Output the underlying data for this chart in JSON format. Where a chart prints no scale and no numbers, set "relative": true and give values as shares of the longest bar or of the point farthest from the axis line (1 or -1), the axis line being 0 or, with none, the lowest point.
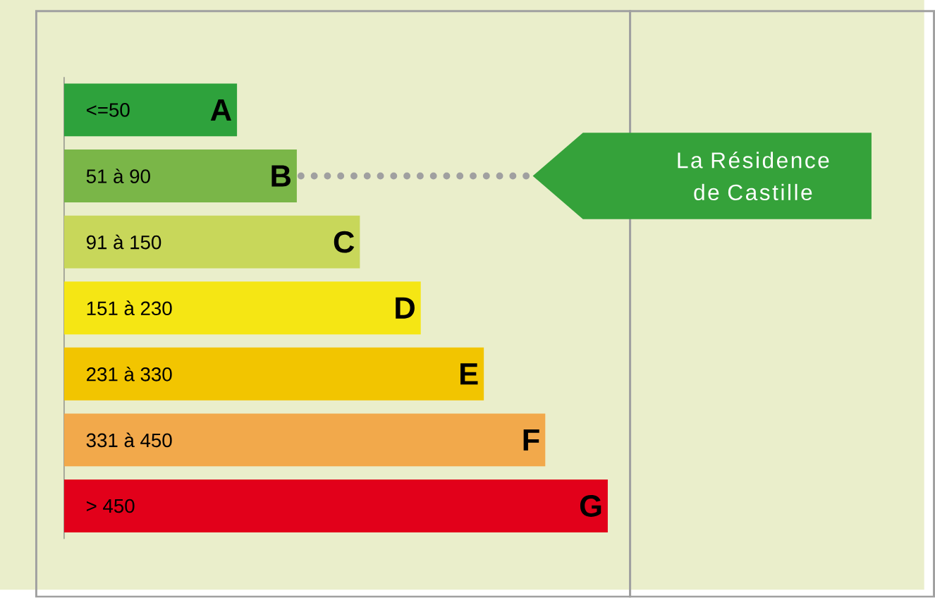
{
  "chart_data": {
    "type": "bar",
    "orientation": "horizontal",
    "relative": true,
    "categories": [
      "<=50",
      "51 à 90",
      "91 à 150",
      "151 à 230",
      "231 à 330",
      "331 à 450",
      "> 450"
    ],
    "values": [
      0.318,
      0.428,
      0.544,
      0.656,
      0.772,
      0.885,
      1
    ],
    "colors": [
      "#2ea23c",
      "#7ab648",
      "#c8d75a",
      "#f5e614",
      "#f2c500",
      "#f2a94b",
      "#e2001a"
    ],
    "annotations": [
      "A",
      "B",
      "C",
      "D",
      "E",
      "F",
      "G",
      "La Résidence de Castille"
    ]
  }
}
